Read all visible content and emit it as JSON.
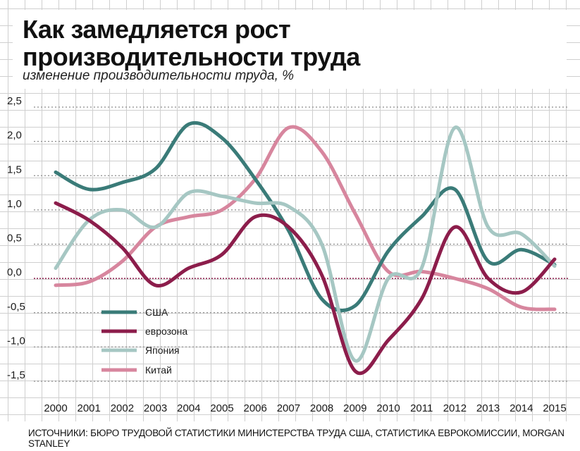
{
  "header": {
    "title_line1": "Как замедляется рост",
    "title_line2": "производительности труда",
    "subtitle": "изменение производительности труда, %"
  },
  "source": "ИСТОЧНИКИ: БЮРО ТРУДОВОЙ СТАТИСТИКИ МИНИСТЕРСТВА ТРУДА США, СТАТИСТИКА ЕВРОКОМИССИИ, MORGAN STANLEY",
  "colors": {
    "usa": "#3a7b78",
    "eurozone": "#8c1d4b",
    "japan": "#a6c7c3",
    "china": "#d7869e",
    "zero_line": "#8c1d4b",
    "gridline": "#bdbdbd"
  },
  "chart_data": {
    "type": "line",
    "title": "Как замедляется рост производительности труда",
    "subtitle": "изменение производительности труда, %",
    "x": [
      "2000",
      "2001",
      "2002",
      "2003",
      "2004",
      "2005",
      "2006",
      "2007",
      "2008",
      "2009",
      "2010",
      "2011",
      "2012",
      "2013",
      "2014",
      "2015"
    ],
    "ylim": [
      -1.75,
      2.5
    ],
    "yticks": [
      "2,5",
      "2,0",
      "1,5",
      "1,0",
      "0,5",
      "0,0",
      "-0,5",
      "-1,0",
      "-1,5"
    ],
    "ytick_values": [
      2.5,
      2.0,
      1.5,
      1.0,
      0.5,
      0.0,
      -0.5,
      -1.0,
      -1.5
    ],
    "grid": true,
    "legend_position": "lower-left",
    "series": [
      {
        "name": "США",
        "color": "#3a7b78",
        "values": [
          1.55,
          1.3,
          1.4,
          1.6,
          2.25,
          2.05,
          1.45,
          0.7,
          -0.3,
          -0.4,
          0.4,
          0.9,
          1.3,
          0.25,
          0.42,
          0.2
        ]
      },
      {
        "name": "еврозона",
        "color": "#8c1d4b",
        "values": [
          1.1,
          0.85,
          0.45,
          -0.1,
          0.15,
          0.35,
          0.9,
          0.75,
          0.05,
          -1.35,
          -0.9,
          -0.3,
          0.75,
          0.0,
          -0.2,
          0.28
        ]
      },
      {
        "name": "Япония",
        "color": "#a6c7c3",
        "values": [
          0.15,
          0.85,
          1.0,
          0.75,
          1.25,
          1.2,
          1.1,
          1.05,
          0.5,
          -1.2,
          0.0,
          0.15,
          2.2,
          0.75,
          0.65,
          0.18
        ]
      },
      {
        "name": "Китай",
        "color": "#d7869e",
        "values": [
          -0.1,
          -0.05,
          0.25,
          0.75,
          0.9,
          1.0,
          1.45,
          2.2,
          1.85,
          0.95,
          0.1,
          0.1,
          0.0,
          -0.15,
          -0.42,
          -0.45
        ]
      }
    ]
  }
}
